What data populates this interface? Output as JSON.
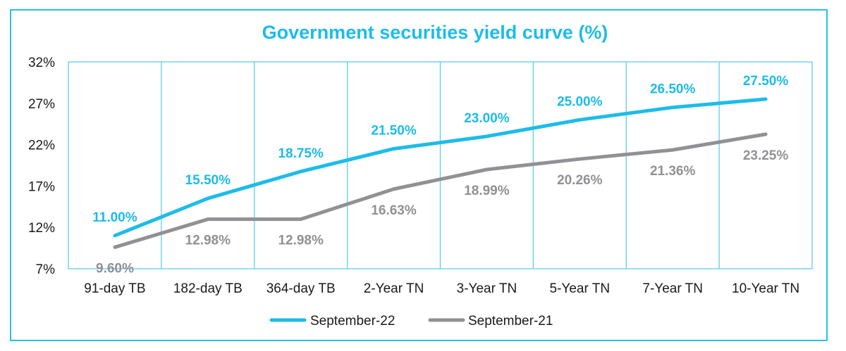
{
  "chart_data": {
    "type": "line",
    "title": "Government securities yield curve (%)",
    "categories": [
      "91-day TB",
      "182-day TB",
      "364-day TB",
      "2-Year TN",
      "3-Year TN",
      "5-Year TN",
      "7-Year TN",
      "10-Year TN"
    ],
    "y_ticks": [
      "7%",
      "12%",
      "17%",
      "22%",
      "27%",
      "32%"
    ],
    "ylim": [
      7,
      32
    ],
    "grid": "vertical",
    "legend_position": "bottom",
    "series": [
      {
        "name": "September-22",
        "color": "#1dbce8",
        "values": [
          11.0,
          15.5,
          18.75,
          21.5,
          23.0,
          25.0,
          26.5,
          27.5
        ],
        "labels": [
          "11.00%",
          "15.50%",
          "18.75%",
          "21.50%",
          "23.00%",
          "25.00%",
          "26.50%",
          "27.50%"
        ]
      },
      {
        "name": "September-21",
        "color": "#919094",
        "values": [
          9.6,
          12.98,
          12.98,
          16.63,
          18.99,
          20.26,
          21.36,
          23.25
        ],
        "labels": [
          "9.60%",
          "12.98%",
          "12.98%",
          "16.63%",
          "18.99%",
          "20.26%",
          "21.36%",
          "23.25%"
        ]
      }
    ]
  },
  "colors": {
    "frame": "#29c0e8",
    "title": "#1dbce8",
    "gridline": "#5fcdea"
  }
}
